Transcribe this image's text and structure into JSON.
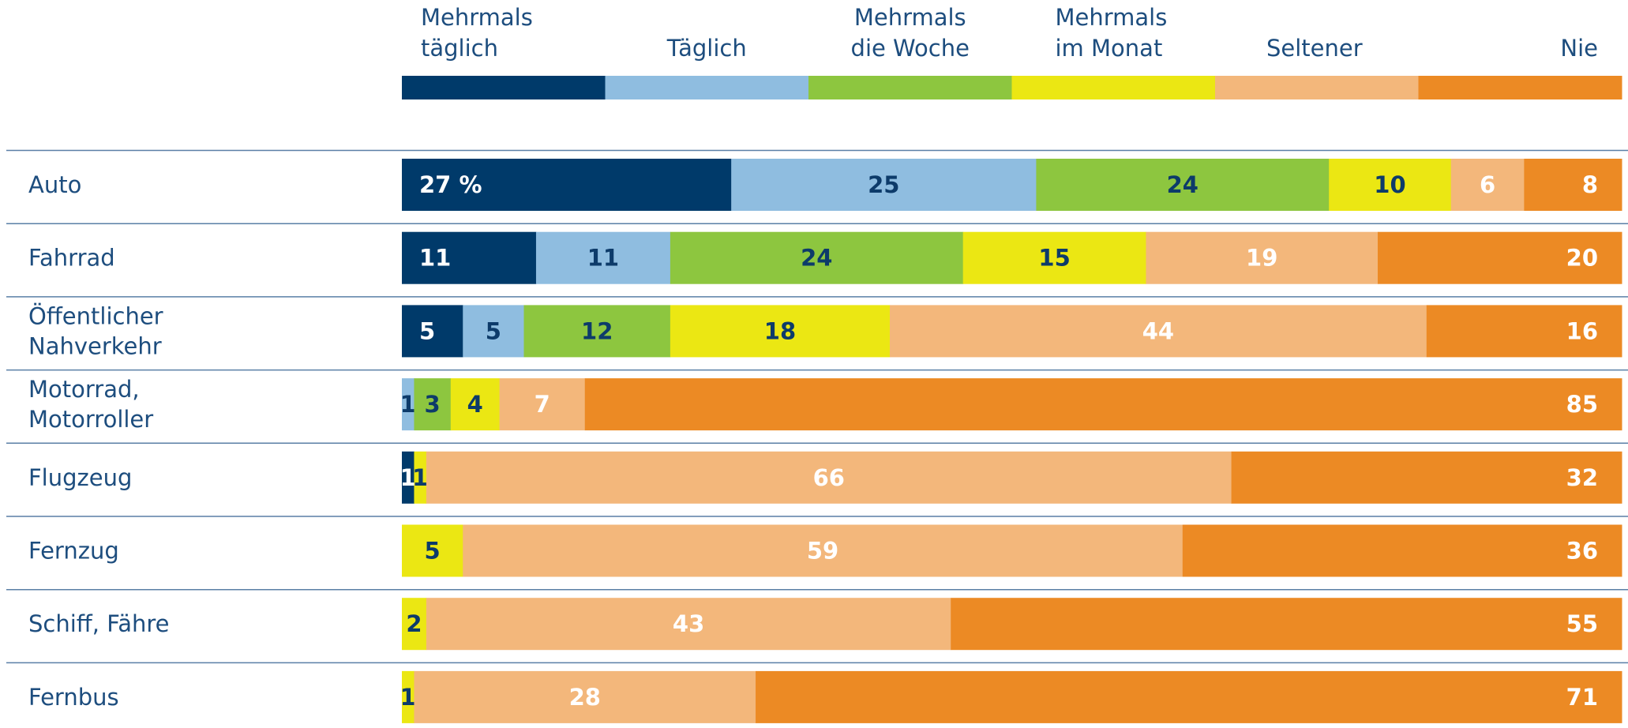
{
  "chart_data": {
    "type": "stacked-bar-horizontal",
    "categories": [
      "Auto",
      "Fahrrad",
      "Öffentlicher\nNahverkehr",
      "Motorrad,\nMotorroller",
      "Flugzeug",
      "Fernzug",
      "Schiff, Fähre",
      "Fernbus"
    ],
    "xlim": [
      0,
      100
    ],
    "series": [
      {
        "name": "Mehrmals\ntäglich",
        "color": "#003a6a",
        "label_color": "#ffffff",
        "values": [
          27,
          11,
          5,
          null,
          1,
          null,
          null,
          null
        ],
        "value_labels": [
          "27 %",
          "11",
          "5",
          null,
          "1",
          null,
          null,
          null
        ]
      },
      {
        "name": "Täglich",
        "color": "#8fbde0",
        "label_color": "#0d3b6a",
        "values": [
          25,
          11,
          5,
          1,
          null,
          null,
          null,
          null
        ]
      },
      {
        "name": "Mehrmals\ndie Woche",
        "color": "#8dc63f",
        "label_color": "#0d3b6a",
        "values": [
          24,
          24,
          12,
          3,
          null,
          null,
          null,
          null
        ]
      },
      {
        "name": "Mehrmals\nim Monat",
        "color": "#ebe713",
        "label_color": "#0d3b6a",
        "values": [
          10,
          15,
          18,
          4,
          1,
          5,
          2,
          1
        ]
      },
      {
        "name": "Seltener",
        "color": "#f3b77b",
        "label_color": "#ffffff",
        "values": [
          6,
          19,
          44,
          7,
          66,
          59,
          43,
          28
        ]
      },
      {
        "name": "Nie",
        "color": "#ec8a24",
        "label_color": "#ffffff",
        "values": [
          8,
          20,
          16,
          85,
          32,
          36,
          55,
          71
        ]
      }
    ]
  }
}
